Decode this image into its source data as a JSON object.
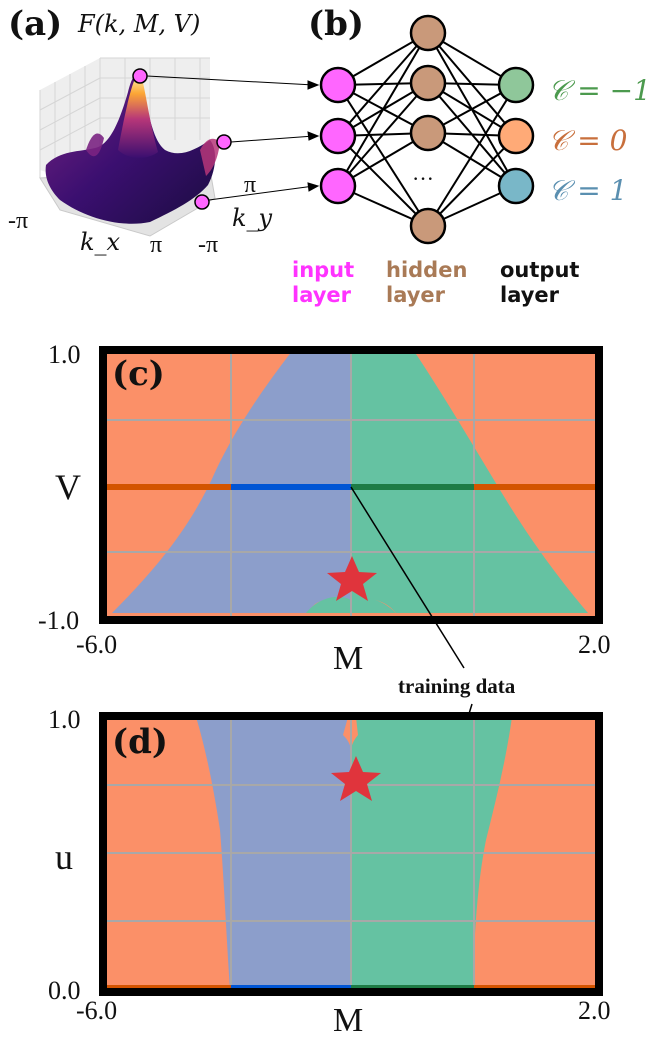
{
  "panel_a": {
    "label": "(a)",
    "function": "F(k, M, V)",
    "axis_x_min": "-π",
    "axis_x_max": "π",
    "axis_x_label": "k_x",
    "axis_y_min": "-π",
    "axis_y_max": "π",
    "axis_y_label": "k_y"
  },
  "panel_b": {
    "label": "(b)",
    "ellipsis": "···",
    "outputs": [
      {
        "text": "𝒞 = −1",
        "color": "#4c9a4e"
      },
      {
        "text": "𝒞 = 0",
        "color": "#c86f3c"
      },
      {
        "text": "𝒞 = 1",
        "color": "#5a8fb0"
      }
    ],
    "layers": [
      {
        "line1": "input",
        "line2": "layer",
        "color": "#ff33ff"
      },
      {
        "line1": "hidden",
        "line2": "layer",
        "color": "#a97a56"
      },
      {
        "line1": "output",
        "line2": "layer",
        "color": "#111111"
      }
    ],
    "node_colors": {
      "input": "#ff66ff",
      "hidden": "#c9997a",
      "out1": "#8fc79a",
      "out2": "#ffaa77",
      "out3": "#79b7c8"
    }
  },
  "panel_c": {
    "label": "(c)",
    "y_top": "1.0",
    "y_bottom": "-1.0",
    "y_label": "V",
    "x_left": "-6.0",
    "x_right": "2.0",
    "x_label": "M"
  },
  "annotation": {
    "text": "training data"
  },
  "panel_d": {
    "label": "(d)",
    "y_top": "1.0",
    "y_bottom": "0.0",
    "y_label": "u",
    "x_left": "-6.0",
    "x_right": "2.0",
    "x_label": "M"
  },
  "colors": {
    "region_trivial": "#fb9068",
    "region_c1": "#8c9ecb",
    "region_cm1": "#65c2a2",
    "train_trivial": "#d35400",
    "train_c1": "#0055d4",
    "train_cm1": "#1e7b45",
    "star": "#e0343c"
  }
}
